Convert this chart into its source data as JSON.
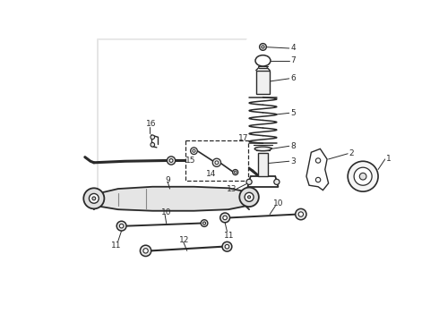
{
  "bg_color": "#ffffff",
  "line_color": "#2a2a2a",
  "fig_width": 4.9,
  "fig_height": 3.6,
  "dpi": 100
}
